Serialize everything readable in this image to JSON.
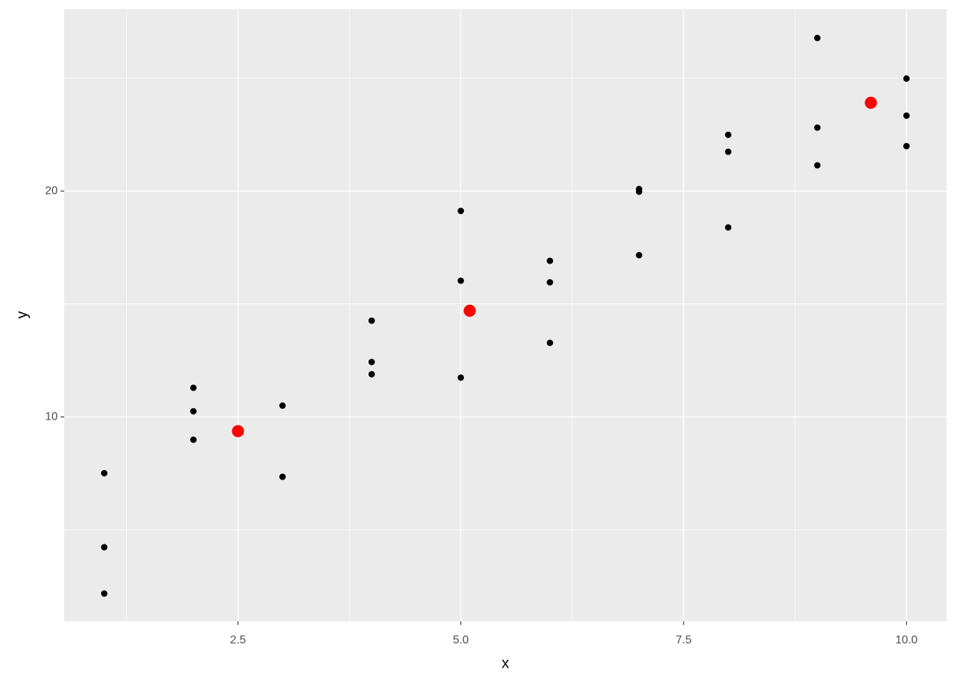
{
  "chart_data": {
    "type": "scatter",
    "xlabel": "x",
    "ylabel": "y",
    "xlim": [
      0.55,
      10.45
    ],
    "ylim": [
      0.95,
      28.05
    ],
    "xticks": [
      2.5,
      {
        "value": 5,
        "label": "5.0"
      },
      7.5,
      {
        "value": 10,
        "label": "10.0"
      }
    ],
    "yticks": [
      10,
      20
    ],
    "xminor": [
      1.25,
      3.75,
      6.25,
      8.75
    ],
    "yminor": [
      5,
      15,
      25
    ],
    "grid": true,
    "background": "#ebebeb",
    "series": [
      {
        "color": "#000000",
        "size": 4.5,
        "x": [
          1,
          1,
          1,
          2,
          2,
          2,
          3,
          3,
          4,
          4,
          4,
          5,
          5,
          5,
          6,
          6,
          6,
          7,
          7,
          7,
          8,
          8,
          8,
          9,
          9,
          9,
          10,
          10,
          10
        ],
        "values": [
          7.51,
          4.23,
          2.18,
          11.29,
          10.25,
          8.99,
          10.5,
          7.35,
          14.26,
          12.43,
          11.89,
          19.12,
          16.03,
          11.74,
          16.91,
          15.96,
          13.28,
          20.09,
          19.97,
          17.16,
          22.49,
          21.74,
          18.39,
          26.78,
          22.81,
          21.14,
          24.98,
          23.34,
          21.99
        ]
      },
      {
        "color": "#ff0000",
        "size": 8.5,
        "x": [
          2.5,
          5.1,
          9.6
        ],
        "values": [
          9.37,
          14.7,
          23.91
        ]
      }
    ]
  }
}
